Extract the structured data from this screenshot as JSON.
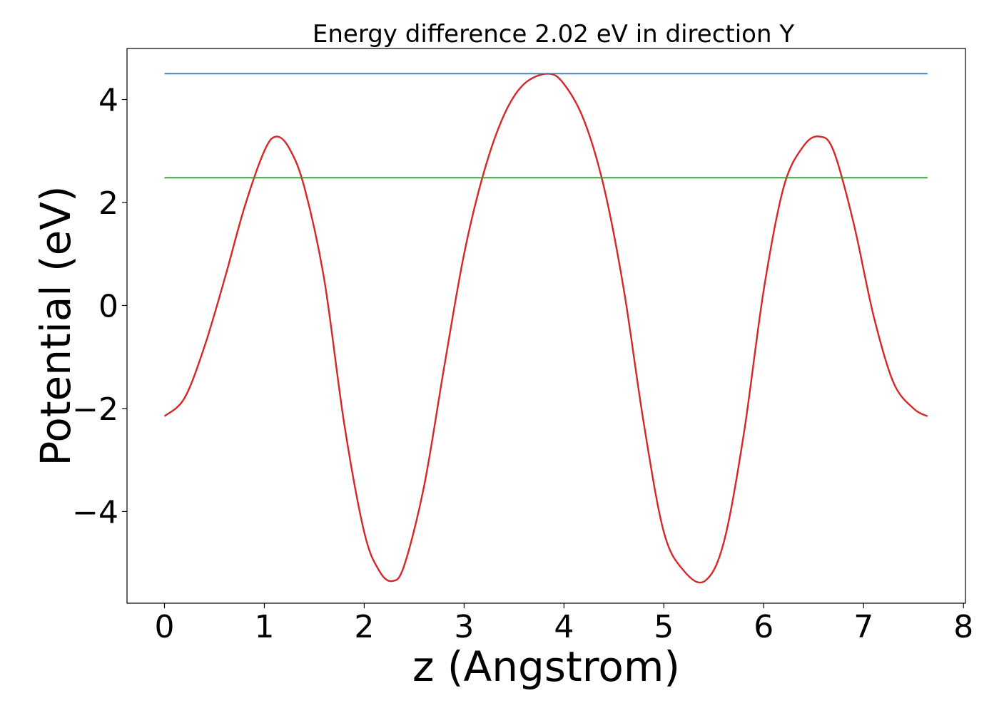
{
  "chart_data": {
    "type": "line",
    "title": "Energy difference 2.02 eV in direction Y",
    "xlabel": "z (Angstrom)",
    "ylabel": "Potential (eV)",
    "xlim": [
      -0.375,
      8.02
    ],
    "ylim": [
      -5.78,
      4.99
    ],
    "xticks": [
      0,
      1,
      2,
      3,
      4,
      5,
      6,
      7,
      8
    ],
    "xtick_labels": [
      "0",
      "1",
      "2",
      "3",
      "4",
      "5",
      "6",
      "7",
      "8"
    ],
    "yticks": [
      -4,
      -2,
      0,
      2,
      4
    ],
    "ytick_labels": [
      "−4",
      "−2",
      "0",
      "2",
      "4"
    ],
    "grid": false,
    "series": [
      {
        "color": "#d62728",
        "x": [
          0.0,
          0.2,
          0.4,
          0.6,
          0.8,
          1.0,
          1.12,
          1.25,
          1.4,
          1.6,
          1.8,
          2.0,
          2.15,
          2.28,
          2.4,
          2.6,
          2.8,
          3.0,
          3.2,
          3.4,
          3.6,
          3.84,
          4.0,
          4.2,
          4.4,
          4.6,
          4.8,
          5.0,
          5.2,
          5.41,
          5.6,
          5.8,
          6.0,
          6.2,
          6.4,
          6.56,
          6.7,
          6.9,
          7.1,
          7.3,
          7.5,
          7.64
        ],
        "y": [
          -2.15,
          -1.8,
          -0.8,
          0.5,
          1.9,
          3.0,
          3.28,
          3.05,
          2.3,
          0.5,
          -2.3,
          -4.4,
          -5.15,
          -5.35,
          -5.05,
          -3.5,
          -1.2,
          1.0,
          2.6,
          3.7,
          4.3,
          4.5,
          4.3,
          3.6,
          2.3,
          0.3,
          -2.3,
          -4.4,
          -5.15,
          -5.35,
          -4.6,
          -2.5,
          0.3,
          2.3,
          3.1,
          3.28,
          3.0,
          1.6,
          -0.2,
          -1.5,
          -2.0,
          -2.15
        ]
      },
      {
        "color": "#1f77b4",
        "x": [
          0.0,
          7.64
        ],
        "y": [
          4.5,
          4.5
        ]
      },
      {
        "color": "#2ca02c",
        "x": [
          0.0,
          7.64
        ],
        "y": [
          2.48,
          2.48
        ]
      }
    ]
  }
}
